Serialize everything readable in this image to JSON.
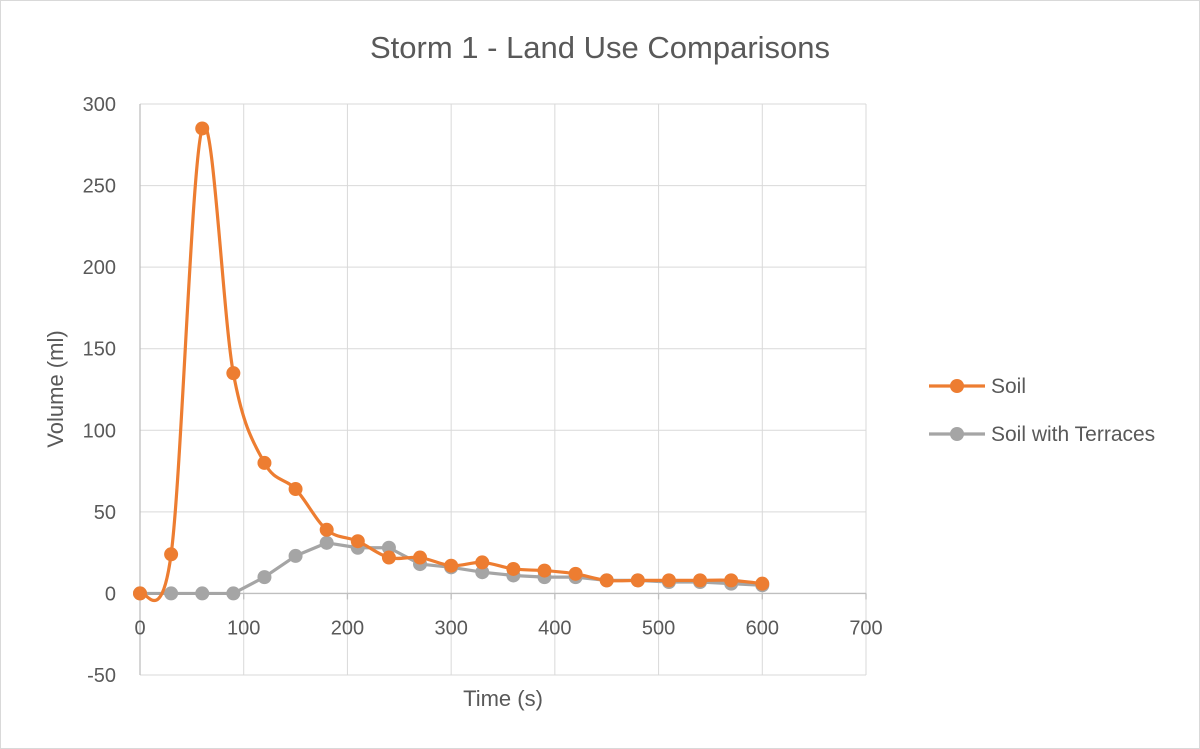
{
  "chart_data": {
    "type": "scatter",
    "title": "Storm 1 - Land Use Comparisons",
    "xlabel": "Time (s)",
    "ylabel": "Volume (ml)",
    "xlim": [
      0,
      700
    ],
    "ylim": [
      -50,
      300
    ],
    "xticks": [
      0,
      100,
      200,
      300,
      400,
      500,
      600,
      700
    ],
    "yticks": [
      -50,
      0,
      50,
      100,
      150,
      200,
      250,
      300
    ],
    "grid": true,
    "legend_position": "right",
    "series": [
      {
        "name": "Soil",
        "color": "#ED7D31",
        "smooth": true,
        "x": [
          0,
          30,
          60,
          90,
          120,
          150,
          180,
          210,
          240,
          270,
          300,
          330,
          360,
          390,
          420,
          450,
          480,
          510,
          540,
          570,
          600
        ],
        "y": [
          0,
          24,
          285,
          135,
          80,
          64,
          39,
          32,
          22,
          22,
          17,
          19,
          15,
          14,
          12,
          8,
          8,
          8,
          8,
          8,
          6
        ]
      },
      {
        "name": "Soil with Terraces",
        "color": "#A5A5A5",
        "smooth": false,
        "x": [
          0,
          30,
          60,
          90,
          120,
          150,
          180,
          210,
          240,
          270,
          300,
          330,
          360,
          390,
          420,
          450,
          480,
          510,
          540,
          570,
          600
        ],
        "y": [
          0,
          0,
          0,
          0,
          10,
          23,
          31,
          28,
          28,
          18,
          16,
          13,
          11,
          10,
          10,
          8,
          8,
          7,
          7,
          6,
          5
        ]
      }
    ]
  }
}
